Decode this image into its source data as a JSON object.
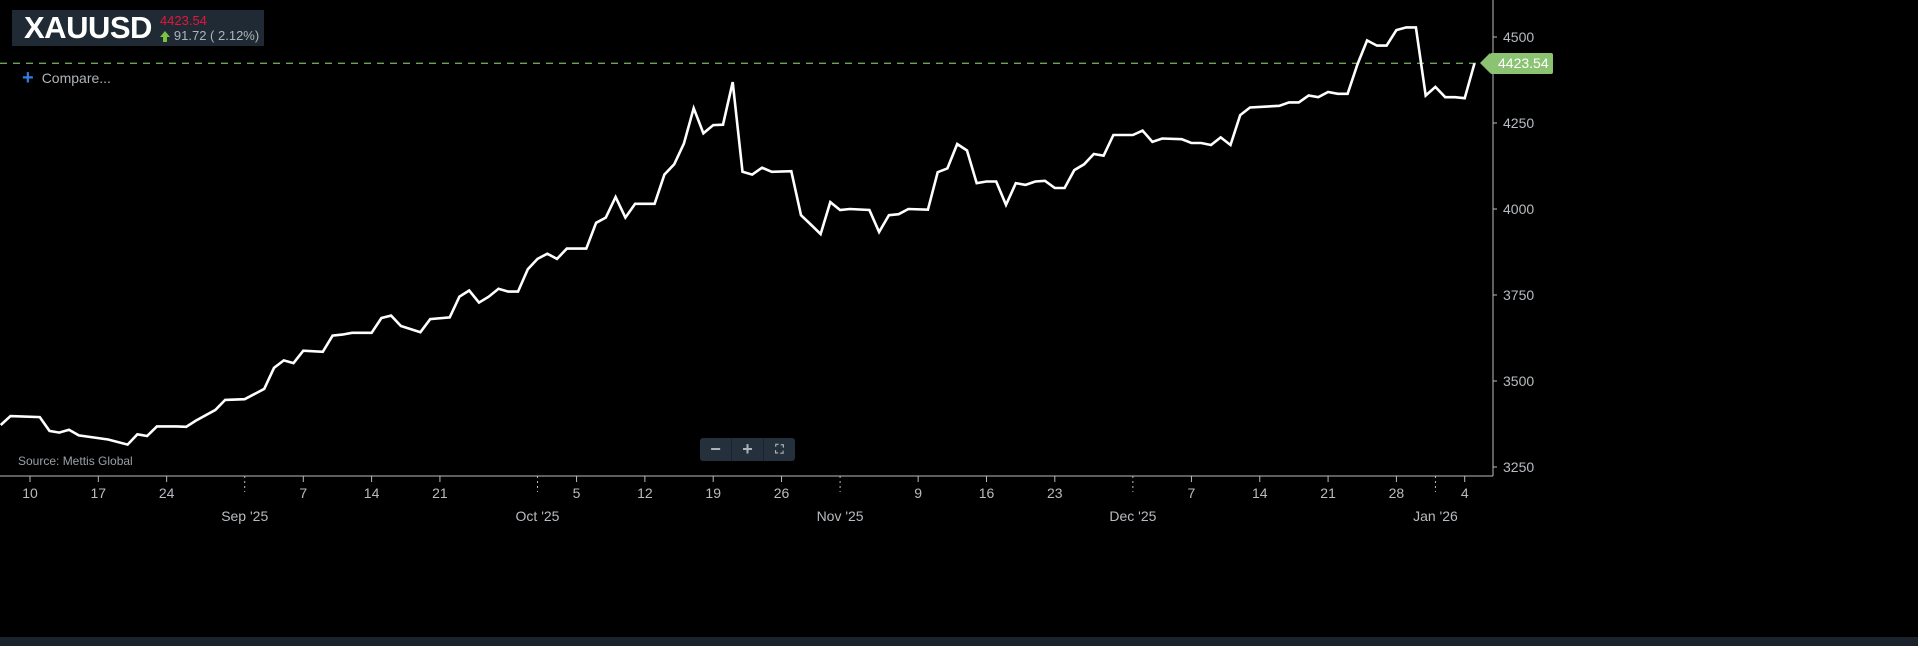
{
  "header": {
    "symbol": "XAUUSD",
    "price": "4423.54",
    "change": "91.72 ( 2.12%)",
    "change_direction": "up"
  },
  "compare_label": "Compare...",
  "source": "Source: Mettis Global",
  "zoom_controls": {
    "minus": "−",
    "plus": "+",
    "fullscreen": "⛶"
  },
  "last_price_tag": "4423.54",
  "colors": {
    "line": "#ffffff",
    "price_down_text": "#e5173b",
    "up_green": "#7cc142",
    "last_price_line": "#6ea35a",
    "tag_bg": "#8bc373",
    "header_bg": "#1f2a34"
  },
  "chart_data": {
    "type": "line",
    "title": "XAUUSD",
    "xlabel": "",
    "ylabel": "",
    "ylim": [
      3250,
      4500
    ],
    "y_ticks": [
      "3250",
      "3500",
      "3750",
      "4000",
      "4250",
      "4500"
    ],
    "x_day_ticks": [
      {
        "date": "2025-08-10",
        "label": "10"
      },
      {
        "date": "2025-08-17",
        "label": "17"
      },
      {
        "date": "2025-08-24",
        "label": "24"
      },
      {
        "date": "2025-09-07",
        "label": "7"
      },
      {
        "date": "2025-09-14",
        "label": "14"
      },
      {
        "date": "2025-09-21",
        "label": "21"
      },
      {
        "date": "2025-10-05",
        "label": "5"
      },
      {
        "date": "2025-10-12",
        "label": "12"
      },
      {
        "date": "2025-10-19",
        "label": "19"
      },
      {
        "date": "2025-10-26",
        "label": "26"
      },
      {
        "date": "2025-11-09",
        "label": "9"
      },
      {
        "date": "2025-11-16",
        "label": "16"
      },
      {
        "date": "2025-11-23",
        "label": "23"
      },
      {
        "date": "2025-12-07",
        "label": "7"
      },
      {
        "date": "2025-12-14",
        "label": "14"
      },
      {
        "date": "2025-12-21",
        "label": "21"
      },
      {
        "date": "2025-12-28",
        "label": "28"
      },
      {
        "date": "2026-01-04",
        "label": "4"
      }
    ],
    "x_month_ticks": [
      {
        "date": "2025-09-01",
        "label": "Sep '25"
      },
      {
        "date": "2025-10-01",
        "label": "Oct '25"
      },
      {
        "date": "2025-11-01",
        "label": "Nov '25"
      },
      {
        "date": "2025-12-01",
        "label": "Dec '25"
      },
      {
        "date": "2026-01-01",
        "label": "Jan '26"
      }
    ],
    "last_value": 4423.54,
    "grid": false,
    "series": [
      {
        "points": [
          [
            "2025-08-07",
            3372
          ],
          [
            "2025-08-08",
            3398
          ],
          [
            "2025-08-11",
            3395
          ],
          [
            "2025-08-12",
            3355
          ],
          [
            "2025-08-13",
            3350
          ],
          [
            "2025-08-14",
            3358
          ],
          [
            "2025-08-15",
            3342
          ],
          [
            "2025-08-18",
            3330
          ],
          [
            "2025-08-20",
            3315
          ],
          [
            "2025-08-21",
            3345
          ],
          [
            "2025-08-22",
            3340
          ],
          [
            "2025-08-23",
            3368
          ],
          [
            "2025-08-25",
            3368
          ],
          [
            "2025-08-26",
            3367
          ],
          [
            "2025-08-27",
            3385
          ],
          [
            "2025-08-29",
            3416
          ],
          [
            "2025-08-30",
            3445
          ],
          [
            "2025-09-01",
            3447
          ],
          [
            "2025-09-03",
            3477
          ],
          [
            "2025-09-04",
            3538
          ],
          [
            "2025-09-05",
            3560
          ],
          [
            "2025-09-06",
            3552
          ],
          [
            "2025-09-07",
            3588
          ],
          [
            "2025-09-09",
            3585
          ],
          [
            "2025-09-10",
            3632
          ],
          [
            "2025-09-11",
            3635
          ],
          [
            "2025-09-12",
            3640
          ],
          [
            "2025-09-14",
            3640
          ],
          [
            "2025-09-15",
            3683
          ],
          [
            "2025-09-16",
            3690
          ],
          [
            "2025-09-17",
            3660
          ],
          [
            "2025-09-19",
            3642
          ],
          [
            "2025-09-20",
            3680
          ],
          [
            "2025-09-22",
            3685
          ],
          [
            "2025-09-23",
            3745
          ],
          [
            "2025-09-24",
            3763
          ],
          [
            "2025-09-25",
            3728
          ],
          [
            "2025-09-26",
            3745
          ],
          [
            "2025-09-27",
            3768
          ],
          [
            "2025-09-28",
            3760
          ],
          [
            "2025-09-29",
            3760
          ],
          [
            "2025-09-30",
            3825
          ],
          [
            "2025-10-01",
            3855
          ],
          [
            "2025-10-02",
            3870
          ],
          [
            "2025-10-03",
            3855
          ],
          [
            "2025-10-04",
            3885
          ],
          [
            "2025-10-06",
            3885
          ],
          [
            "2025-10-07",
            3960
          ],
          [
            "2025-10-08",
            3975
          ],
          [
            "2025-10-09",
            4035
          ],
          [
            "2025-10-10",
            3975
          ],
          [
            "2025-10-11",
            4015
          ],
          [
            "2025-10-13",
            4015
          ],
          [
            "2025-10-14",
            4100
          ],
          [
            "2025-10-15",
            4130
          ],
          [
            "2025-10-16",
            4190
          ],
          [
            "2025-10-17",
            4293
          ],
          [
            "2025-10-18",
            4220
          ],
          [
            "2025-10-19",
            4244
          ],
          [
            "2025-10-20",
            4245
          ],
          [
            "2025-10-21",
            4369
          ],
          [
            "2025-10-22",
            4108
          ],
          [
            "2025-10-23",
            4100
          ],
          [
            "2025-10-24",
            4120
          ],
          [
            "2025-10-25",
            4108
          ],
          [
            "2025-10-27",
            4110
          ],
          [
            "2025-10-28",
            3982
          ],
          [
            "2025-10-29",
            3955
          ],
          [
            "2025-10-30",
            3927
          ],
          [
            "2025-10-31",
            4020
          ],
          [
            "2025-11-01",
            3997
          ],
          [
            "2025-11-02",
            4000
          ],
          [
            "2025-11-04",
            3997
          ],
          [
            "2025-11-05",
            3933
          ],
          [
            "2025-11-06",
            3982
          ],
          [
            "2025-11-07",
            3985
          ],
          [
            "2025-11-08",
            4000
          ],
          [
            "2025-11-10",
            3998
          ],
          [
            "2025-11-11",
            4107
          ],
          [
            "2025-11-12",
            4118
          ],
          [
            "2025-11-13",
            4189
          ],
          [
            "2025-11-14",
            4170
          ],
          [
            "2025-11-15",
            4075
          ],
          [
            "2025-11-16",
            4080
          ],
          [
            "2025-11-17",
            4080
          ],
          [
            "2025-11-18",
            4012
          ],
          [
            "2025-11-19",
            4075
          ],
          [
            "2025-11-20",
            4070
          ],
          [
            "2025-11-21",
            4080
          ],
          [
            "2025-11-22",
            4082
          ],
          [
            "2025-11-23",
            4061
          ],
          [
            "2025-11-24",
            4061
          ],
          [
            "2025-11-25",
            4113
          ],
          [
            "2025-11-26",
            4130
          ],
          [
            "2025-11-27",
            4160
          ],
          [
            "2025-11-28",
            4155
          ],
          [
            "2025-11-29",
            4215
          ],
          [
            "2025-12-01",
            4215
          ],
          [
            "2025-12-02",
            4228
          ],
          [
            "2025-12-03",
            4195
          ],
          [
            "2025-12-04",
            4205
          ],
          [
            "2025-12-06",
            4203
          ],
          [
            "2025-12-07",
            4192
          ],
          [
            "2025-12-08",
            4192
          ],
          [
            "2025-12-09",
            4186
          ],
          [
            "2025-12-10",
            4208
          ],
          [
            "2025-12-11",
            4186
          ],
          [
            "2025-12-12",
            4273
          ],
          [
            "2025-12-13",
            4295
          ],
          [
            "2025-12-16",
            4300
          ],
          [
            "2025-12-17",
            4310
          ],
          [
            "2025-12-18",
            4310
          ],
          [
            "2025-12-19",
            4330
          ],
          [
            "2025-12-20",
            4325
          ],
          [
            "2025-12-21",
            4340
          ],
          [
            "2025-12-22",
            4335
          ],
          [
            "2025-12-23",
            4335
          ],
          [
            "2025-12-24",
            4420
          ],
          [
            "2025-12-25",
            4490
          ],
          [
            "2025-12-26",
            4475
          ],
          [
            "2025-12-27",
            4475
          ],
          [
            "2025-12-28",
            4520
          ],
          [
            "2025-12-29",
            4528
          ],
          [
            "2025-12-30",
            4528
          ],
          [
            "2025-12-31",
            4330
          ],
          [
            "2026-01-01",
            4355
          ],
          [
            "2026-01-02",
            4325
          ],
          [
            "2026-01-03",
            4325
          ],
          [
            "2026-01-04",
            4322
          ],
          [
            "2026-01-05",
            4423.54
          ]
        ]
      }
    ]
  }
}
